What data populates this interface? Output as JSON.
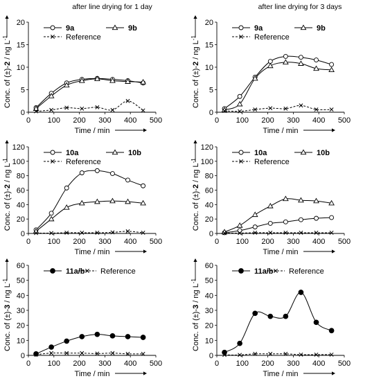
{
  "column_titles": [
    "after line drying for 1 day",
    "after line drying for 3 days"
  ],
  "colors": {
    "line": "#000000",
    "axis": "#000000",
    "ref_dash": "#000000",
    "marker_fill_open": "#ffffff",
    "marker_fill_solid": "#000000"
  },
  "chart_data": [
    {
      "panel": "after line drying for 1 day",
      "type": "line",
      "ylabel_prefix": "Conc. of (±)-",
      "ylabel_compound": "2",
      "ylabel_units": " / ng L",
      "ylabel_exp": "-1",
      "xlabel": "Time / min",
      "xlim": [
        0,
        500
      ],
      "ylim": [
        0,
        20
      ],
      "xticks": [
        0,
        100,
        200,
        300,
        400,
        500
      ],
      "yticks": [
        0,
        5,
        10,
        15,
        20
      ],
      "legend": "top",
      "series": [
        {
          "name": "9a",
          "marker": "circle-open",
          "line": "solid",
          "x": [
            30,
            90,
            150,
            210,
            270,
            330,
            390,
            450
          ],
          "y": [
            1.0,
            4.2,
            6.5,
            7.3,
            7.5,
            7.3,
            7.0,
            6.5
          ]
        },
        {
          "name": "9b",
          "marker": "triangle-open",
          "line": "solid",
          "x": [
            30,
            90,
            150,
            210,
            270,
            330,
            390,
            450
          ],
          "y": [
            0.8,
            3.6,
            6.0,
            7.0,
            7.4,
            7.0,
            6.8,
            6.7
          ]
        },
        {
          "name": "Reference",
          "marker": "cross",
          "line": "dashed",
          "x": [
            30,
            90,
            150,
            210,
            270,
            330,
            390,
            450
          ],
          "y": [
            0.2,
            0.5,
            1.0,
            0.8,
            1.1,
            0.5,
            2.5,
            0.4
          ]
        }
      ]
    },
    {
      "panel": "after line drying for 3 days",
      "type": "line",
      "ylabel_prefix": "Conc. of (±)-",
      "ylabel_compound": "2",
      "ylabel_units": " / ng L",
      "ylabel_exp": "-1",
      "xlabel": "Time / min",
      "xlim": [
        0,
        500
      ],
      "ylim": [
        0,
        20
      ],
      "xticks": [
        0,
        100,
        200,
        300,
        400,
        500
      ],
      "yticks": [
        0,
        5,
        10,
        15,
        20
      ],
      "legend": "top",
      "series": [
        {
          "name": "9a",
          "marker": "circle-open",
          "line": "solid",
          "x": [
            30,
            90,
            150,
            210,
            270,
            330,
            390,
            450
          ],
          "y": [
            0.8,
            3.5,
            7.8,
            11.3,
            12.4,
            12.2,
            11.6,
            10.6
          ]
        },
        {
          "name": "9b",
          "marker": "triangle-open",
          "line": "solid",
          "x": [
            30,
            90,
            150,
            210,
            270,
            330,
            390,
            450
          ],
          "y": [
            0.5,
            1.8,
            7.5,
            10.3,
            11.1,
            10.8,
            9.7,
            9.4
          ]
        },
        {
          "name": "Reference",
          "marker": "cross",
          "line": "dashed",
          "x": [
            30,
            90,
            150,
            210,
            270,
            330,
            390,
            450
          ],
          "y": [
            0.3,
            0.2,
            0.6,
            0.9,
            0.8,
            1.5,
            0.6,
            0.6
          ]
        }
      ]
    },
    {
      "panel": "after line drying for 1 day",
      "type": "line",
      "ylabel_prefix": "Conc. of (±)-",
      "ylabel_compound": "2",
      "ylabel_units": " / ng L",
      "ylabel_exp": "-1",
      "xlabel": "Time / min",
      "xlim": [
        0,
        500
      ],
      "ylim": [
        0,
        120
      ],
      "xticks": [
        0,
        100,
        200,
        300,
        400,
        500
      ],
      "yticks": [
        0,
        20,
        40,
        60,
        80,
        100,
        120
      ],
      "legend": "top",
      "series": [
        {
          "name": "10a",
          "marker": "circle-open",
          "line": "solid",
          "x": [
            30,
            90,
            150,
            210,
            270,
            330,
            390,
            450
          ],
          "y": [
            5,
            28,
            63,
            84,
            87,
            83,
            74,
            66
          ]
        },
        {
          "name": "10b",
          "marker": "triangle-open",
          "line": "solid",
          "x": [
            30,
            90,
            150,
            210,
            270,
            330,
            390,
            450
          ],
          "y": [
            3,
            20,
            36,
            42,
            44,
            45,
            44,
            42
          ]
        },
        {
          "name": "Reference",
          "marker": "cross",
          "line": "dashed",
          "x": [
            30,
            90,
            150,
            210,
            270,
            330,
            390,
            450
          ],
          "y": [
            0.5,
            0.5,
            1,
            1,
            1,
            1.5,
            3,
            1
          ]
        }
      ]
    },
    {
      "panel": "after line drying for 3 days",
      "type": "line",
      "ylabel_prefix": "Conc. of (±)-",
      "ylabel_compound": "2",
      "ylabel_units": " / ng L",
      "ylabel_exp": "-1",
      "xlabel": "Time / min",
      "xlim": [
        0,
        500
      ],
      "ylim": [
        0,
        120
      ],
      "xticks": [
        0,
        100,
        200,
        300,
        400,
        500
      ],
      "yticks": [
        0,
        20,
        40,
        60,
        80,
        100,
        120
      ],
      "legend": "top",
      "series": [
        {
          "name": "10a",
          "marker": "circle-open",
          "line": "solid",
          "x": [
            30,
            90,
            150,
            210,
            270,
            330,
            390,
            450
          ],
          "y": [
            1,
            4,
            9,
            14,
            16,
            19,
            21,
            22
          ]
        },
        {
          "name": "10b",
          "marker": "triangle-open",
          "line": "solid",
          "x": [
            30,
            90,
            150,
            210,
            270,
            330,
            390,
            450
          ],
          "y": [
            2,
            11,
            26,
            38,
            48,
            46,
            45,
            42
          ]
        },
        {
          "name": "Reference",
          "marker": "cross",
          "line": "dashed",
          "x": [
            30,
            90,
            150,
            210,
            270,
            330,
            390,
            450
          ],
          "y": [
            0.5,
            0.5,
            1,
            1,
            1,
            1,
            1,
            1
          ]
        }
      ]
    },
    {
      "panel": "after line drying for 1 day",
      "type": "line",
      "ylabel_prefix": "Conc. of (±)-",
      "ylabel_compound": "3",
      "ylabel_units": " / ng L",
      "ylabel_exp": "-1",
      "xlabel": "Time / min",
      "xlim": [
        0,
        500
      ],
      "ylim": [
        0,
        60
      ],
      "xticks": [
        0,
        100,
        200,
        300,
        400,
        500
      ],
      "yticks": [
        0,
        10,
        20,
        30,
        40,
        50,
        60
      ],
      "legend": "top",
      "series": [
        {
          "name": "11a/b",
          "marker": "circle-filled",
          "line": "solid",
          "x": [
            30,
            90,
            150,
            210,
            270,
            330,
            390,
            450
          ],
          "y": [
            1,
            5.5,
            9.5,
            12.5,
            14,
            13,
            12.5,
            12
          ]
        },
        {
          "name": "Reference",
          "marker": "cross",
          "line": "dashed",
          "x": [
            30,
            90,
            150,
            210,
            270,
            330,
            390,
            450
          ],
          "y": [
            0.5,
            1.5,
            1.5,
            1.5,
            1.2,
            1.5,
            1.0,
            1.0
          ]
        }
      ]
    },
    {
      "panel": "after line drying for 3 days",
      "type": "line",
      "ylabel_prefix": "Conc. of (±)-",
      "ylabel_compound": "3",
      "ylabel_units": " / ng L",
      "ylabel_exp": "-1",
      "xlabel": "Time / min",
      "xlim": [
        0,
        500
      ],
      "ylim": [
        0,
        60
      ],
      "xticks": [
        0,
        100,
        200,
        300,
        400,
        500
      ],
      "yticks": [
        0,
        10,
        20,
        30,
        40,
        50,
        60
      ],
      "legend": "top",
      "series": [
        {
          "name": "11a/b",
          "marker": "circle-filled",
          "line": "solid",
          "x": [
            30,
            90,
            150,
            210,
            270,
            330,
            390,
            450
          ],
          "y": [
            2,
            8,
            28,
            26,
            26,
            42,
            22,
            16.5
          ]
        },
        {
          "name": "Reference",
          "marker": "cross",
          "line": "dashed",
          "x": [
            30,
            90,
            150,
            210,
            270,
            330,
            390,
            450
          ],
          "y": [
            0.3,
            0.3,
            1.0,
            1.0,
            1.0,
            0.5,
            0.5,
            0.5
          ]
        }
      ]
    }
  ]
}
